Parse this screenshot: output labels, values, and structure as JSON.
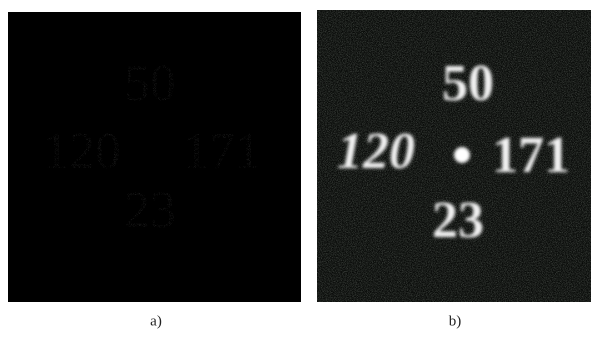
{
  "panels": [
    {
      "caption": "a)",
      "labels": {
        "top": "50",
        "left": "120",
        "right": "171",
        "bottom": "23"
      }
    },
    {
      "caption": "b)",
      "labels": {
        "top": "50",
        "left": "120",
        "right": "171",
        "bottom": "23"
      }
    }
  ]
}
